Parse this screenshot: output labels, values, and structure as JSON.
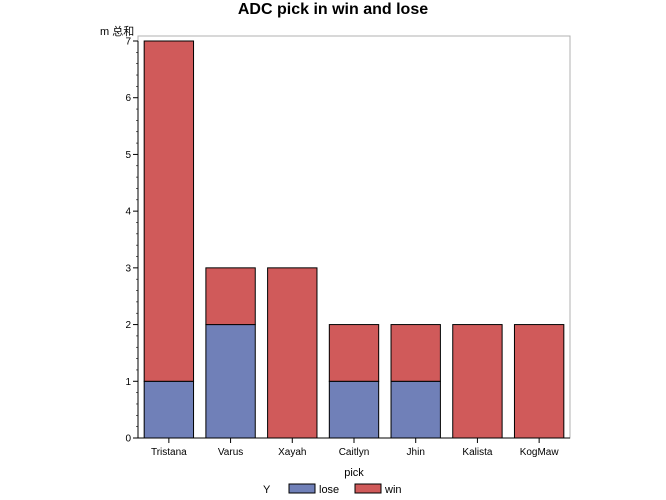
{
  "chart_data": {
    "type": "bar",
    "stacked": true,
    "title": "ADC pick in win and lose",
    "xlabel": "pick",
    "ylabel": "m 总和",
    "ylim": [
      0,
      7
    ],
    "yticks": [
      "0",
      "1",
      "2",
      "3",
      "4",
      "5",
      "6",
      "7"
    ],
    "categories": [
      "Tristana",
      "Varus",
      "Xayah",
      "Caitlyn",
      "Jhin",
      "Kalista",
      "KogMaw"
    ],
    "series": [
      {
        "name": "lose",
        "color": "#7080b8",
        "values": [
          1,
          2,
          0,
          1,
          1,
          0,
          0
        ]
      },
      {
        "name": "win",
        "color": "#d05a5a",
        "values": [
          6,
          1,
          3,
          1,
          1,
          2,
          2
        ]
      }
    ],
    "legend": {
      "title": "Y",
      "position": "bottom"
    },
    "grid": false
  }
}
